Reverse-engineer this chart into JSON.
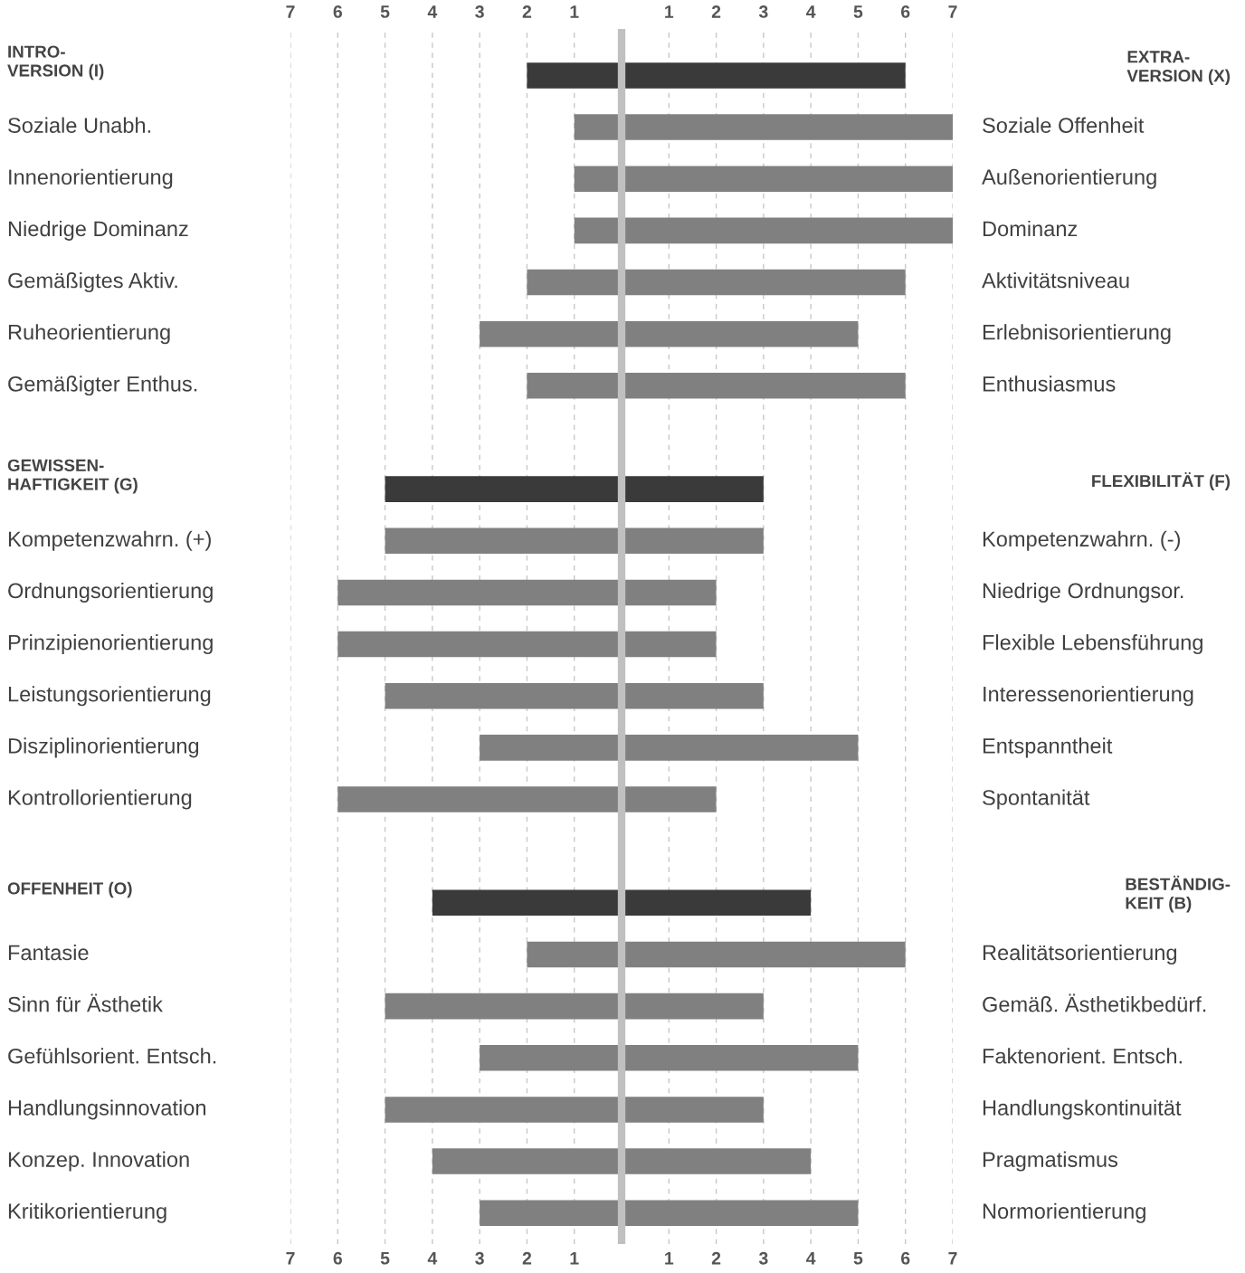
{
  "chart_data": {
    "type": "bar",
    "orientation": "horizontal",
    "stacked": true,
    "categories": [
      "INTRO-\nVERSION (I)",
      "Soziale Unabh.",
      "Innenorientierung",
      "Niedrige Dominanz",
      "Gemäßigtes Aktiv.",
      "Ruheorientierung",
      "Gemäßigter Enthus.",
      null,
      "GEWISSEN-\nHAFTIGKEIT (G)",
      "Kompetenzwahrn. (+)",
      "Ordnungsorientierung",
      "Prinzipienorientierung",
      "Leistungsorientierung",
      "Disziplinorientierung",
      "Kontrollorientierung",
      null,
      "OFFENHEIT (O)",
      "Fantasie",
      "Sinn für Ästhetik",
      "Gefühlsorient. Entsch.",
      "Handlungsinnovation",
      "Konzep. Innovation",
      "Kritikorientierung"
    ],
    "y2_categories": [
      "EXTRA-\nVERSION (X)",
      "Soziale Offenheit",
      "Außenorientierung",
      "Dominanz",
      "Aktivitätsniveau",
      "Erlebnisorientierung",
      "Enthusiasmus",
      null,
      "FLEXIBILITÄT (F)",
      "Kompetenzwahrn. (-)",
      "Niedrige Ordnungsor.",
      "Flexible Lebensführung",
      "Interessenorientierung",
      "Entspanntheit",
      "Spontanität",
      null,
      "BESTÄNDIG-\nKEIT (B)",
      "Realitätsorientierung",
      "Gemäß. Ästhetikbedürf.",
      "Faktenorient. Entsch.",
      "Handlungskontinuität",
      "Pragmatismus",
      "Normorientierung"
    ],
    "series": [
      {
        "values": [
          -2,
          -1,
          -1,
          -1,
          -2,
          -3,
          -2,
          null,
          -5,
          -5,
          -6,
          -6,
          -5,
          -3,
          -6,
          null,
          -4,
          -2,
          -5,
          -3,
          -5,
          -4,
          -3
        ],
        "colors": [
          "#3a3a3a",
          "#808080",
          "#808080",
          "#808080",
          "#808080",
          "#808080",
          "#808080",
          null,
          "#3a3a3a",
          "#808080",
          "#808080",
          "#808080",
          "#808080",
          "#808080",
          "#808080",
          null,
          "#3a3a3a",
          "#808080",
          "#808080",
          "#808080",
          "#808080",
          "#808080",
          "#808080"
        ]
      },
      {
        "values": [
          6,
          7,
          7,
          7,
          6,
          5,
          6,
          null,
          3,
          3,
          2,
          2,
          3,
          5,
          2,
          null,
          4,
          6,
          3,
          5,
          3,
          4,
          5
        ],
        "colors": [
          "#3a3a3a",
          "#808080",
          "#808080",
          "#808080",
          "#808080",
          "#808080",
          "#808080",
          null,
          "#3a3a3a",
          "#808080",
          "#808080",
          "#808080",
          "#808080",
          "#808080",
          "#808080",
          null,
          "#3a3a3a",
          "#808080",
          "#808080",
          "#808080",
          "#808080",
          "#808080",
          "#808080"
        ]
      }
    ],
    "xlim": [
      -7,
      7
    ],
    "xticks": [
      {
        "value": -7,
        "label": "7"
      },
      {
        "value": -6,
        "label": "6"
      },
      {
        "value": -5,
        "label": "5"
      },
      {
        "value": -4,
        "label": "4"
      },
      {
        "value": -3,
        "label": "3"
      },
      {
        "value": -2,
        "label": "2"
      },
      {
        "value": -1,
        "label": "1"
      },
      {
        "value": 1,
        "label": "1"
      },
      {
        "value": 2,
        "label": "2"
      },
      {
        "value": 3,
        "label": "3"
      },
      {
        "value": 4,
        "label": "4"
      },
      {
        "value": 5,
        "label": "5"
      },
      {
        "value": 6,
        "label": "6"
      },
      {
        "value": 7,
        "label": "7"
      }
    ],
    "x2lim": [
      -7,
      7
    ],
    "x2ticks": [
      {
        "value": -7,
        "label": "7"
      },
      {
        "value": -6,
        "label": "6"
      },
      {
        "value": -5,
        "label": "5"
      },
      {
        "value": -4,
        "label": "4"
      },
      {
        "value": -3,
        "label": "3"
      },
      {
        "value": -2,
        "label": "2"
      },
      {
        "value": -1,
        "label": "1"
      },
      {
        "value": 1,
        "label": "1"
      },
      {
        "value": 2,
        "label": "2"
      },
      {
        "value": 3,
        "label": "3"
      },
      {
        "value": 4,
        "label": "4"
      },
      {
        "value": 5,
        "label": "5"
      },
      {
        "value": 6,
        "label": "6"
      },
      {
        "value": 7,
        "label": "7"
      }
    ],
    "grid": "x",
    "ref_lines": [
      {
        "axis": "x",
        "value": 0,
        "label": null,
        "color": "#c0c0c0"
      }
    ]
  }
}
